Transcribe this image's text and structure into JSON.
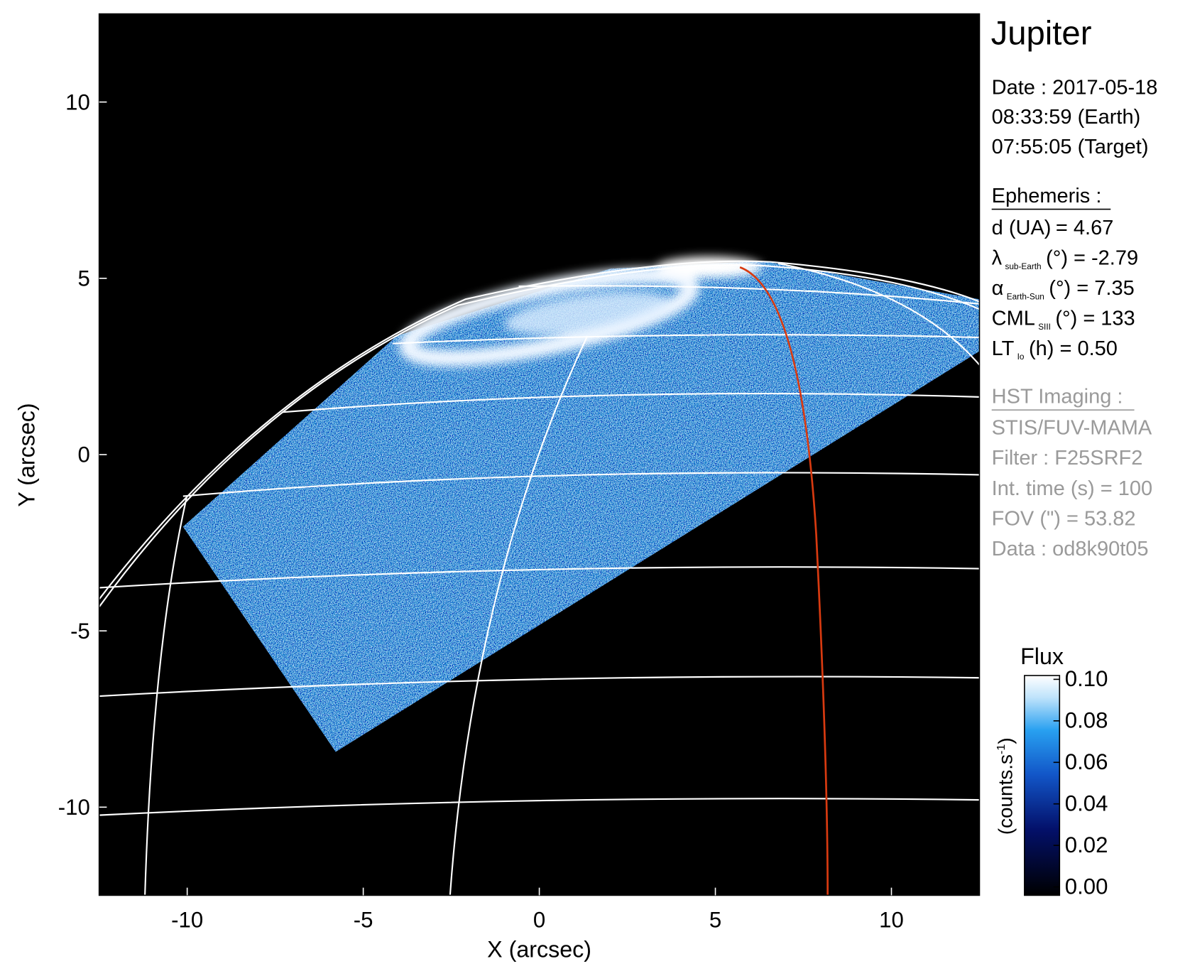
{
  "chart_data": {
    "type": "image",
    "xlabel": "X (arcsec)",
    "ylabel": "Y (arcsec)",
    "xlim": [
      -12.5,
      12.5
    ],
    "ylim": [
      -12.5,
      12.5
    ],
    "xticks": [
      -10,
      -5,
      0,
      5,
      10
    ],
    "yticks": [
      -10,
      -5,
      0,
      5,
      10
    ],
    "colorbar": {
      "title": "Flux",
      "label": [
        "(counts.s",
        "-1",
        ")"
      ],
      "lim": [
        0,
        0.1
      ],
      "ticks": [
        {
          "value": 0,
          "label": "0.00"
        },
        {
          "value": 0.02,
          "label": "0.02"
        },
        {
          "value": 0.04,
          "label": "0.04"
        },
        {
          "value": 0.06,
          "label": "0.06"
        },
        {
          "value": 0.08,
          "label": "0.08"
        },
        {
          "value": 0.1,
          "label": "0.10"
        }
      ]
    }
  },
  "info": {
    "target": "Jupiter",
    "date": [
      "Date : 2017-05-18",
      "08:33:59 (Earth)",
      "07:55:05 (Target)"
    ],
    "ephemeris": {
      "title": "Ephemeris :",
      "rows": [
        [
          "d (UA)",
          "= 4.67"
        ],
        [
          "λ",
          "sub-Earth",
          "(°) = -2.79"
        ],
        [
          "α",
          "Earth-Sun",
          "(°) = 7.35"
        ],
        [
          "CML",
          "SIII",
          "(°) = 133"
        ],
        [
          "LT",
          "Io",
          "(h) = 0.50"
        ]
      ]
    },
    "imaging": {
      "title": "HST Imaging :",
      "rows": [
        "STIS/FUV-MAMA",
        "Filter : F25SRF2",
        "Int. time (s) = 100",
        "FOV (\") = 53.82",
        "Data : od8k90t05"
      ]
    }
  }
}
